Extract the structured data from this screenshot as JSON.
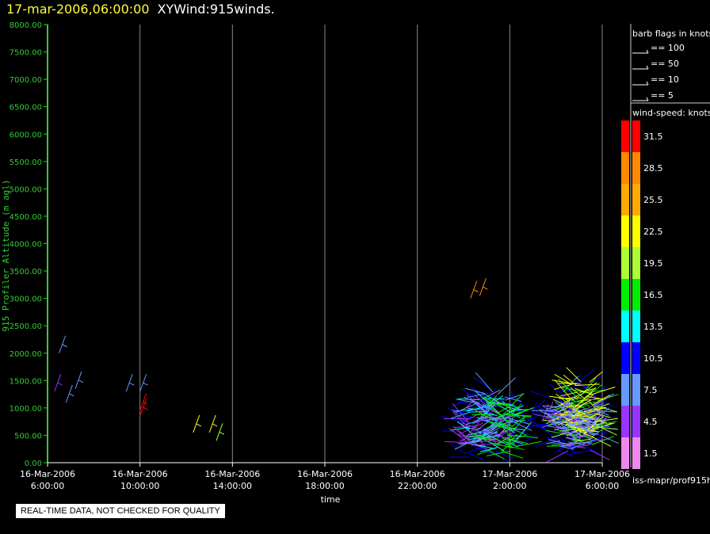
{
  "header": {
    "timestamp": "17-mar-2006,06:00:00",
    "name": "XYWind:915winds."
  },
  "colors": {
    "timestamp": "#ffff33",
    "axis": "#33cc33",
    "grid": "#888888"
  },
  "chart_data": {
    "type": "scatter",
    "ylabel": "915 Profiler Altitude (m agl)",
    "xlabel": "time",
    "ylim": [
      0,
      8000
    ],
    "yticks": [
      "0.00",
      "500.00",
      "1000.00",
      "1500.00",
      "2000.00",
      "2500.00",
      "3000.00",
      "3500.00",
      "4000.00",
      "4500.00",
      "5000.00",
      "5500.00",
      "6000.00",
      "6500.00",
      "7000.00",
      "7500.00",
      "8000.00"
    ],
    "xticks": [
      {
        "date": "16-Mar-2006",
        "time": "6:00:00"
      },
      {
        "date": "16-Mar-2006",
        "time": "10:00:00"
      },
      {
        "date": "16-Mar-2006",
        "time": "14:00:00"
      },
      {
        "date": "16-Mar-2006",
        "time": "18:00:00"
      },
      {
        "date": "16-Mar-2006",
        "time": "22:00:00"
      },
      {
        "date": "17-Mar-2006",
        "time": "2:00:00"
      },
      {
        "date": "17-Mar-2006",
        "time": "6:00:00"
      }
    ],
    "xlim_hours": [
      0,
      24
    ],
    "grid": true,
    "barb_legend": {
      "title": "barb flags in knots",
      "items": [
        "== 100",
        "== 50",
        "== 10",
        "== 5"
      ]
    },
    "color_legend": {
      "title": "wind-speed: knots",
      "levels": [
        {
          "label": "31.5",
          "color": "#ff0000"
        },
        {
          "label": "28.5",
          "color": "#ff8800"
        },
        {
          "label": "25.5",
          "color": "#ffaa00"
        },
        {
          "label": "22.5",
          "color": "#ffff00"
        },
        {
          "label": "19.5",
          "color": "#aaff33"
        },
        {
          "label": "16.5",
          "color": "#00ee00"
        },
        {
          "label": "13.5",
          "color": "#00ffff"
        },
        {
          "label": "10.5",
          "color": "#0000ff"
        },
        {
          "label": "7.5",
          "color": "#6699ff"
        },
        {
          "label": "4.5",
          "color": "#9933ff"
        },
        {
          "label": "1.5",
          "color": "#ee88ee"
        }
      ]
    },
    "wind_obs": [
      {
        "t": 0.5,
        "alt": 2000,
        "speed": 7.5
      },
      {
        "t": 0.3,
        "alt": 1300,
        "speed": 4.5
      },
      {
        "t": 0.8,
        "alt": 1100,
        "speed": 7.5
      },
      {
        "t": 1.2,
        "alt": 1350,
        "speed": 7.5
      },
      {
        "t": 4.0,
        "alt": 1300,
        "speed": 7.5
      },
      {
        "t": 3.4,
        "alt": 1300,
        "speed": 7.5
      },
      {
        "t": 4.0,
        "alt": 950,
        "speed": 31.5
      },
      {
        "t": 4.0,
        "alt": 850,
        "speed": 31.5
      },
      {
        "t": 7.0,
        "alt": 550,
        "speed": 22.5
      },
      {
        "t": 7.3,
        "alt": 400,
        "speed": 19.5
      },
      {
        "t": 18.3,
        "alt": 3000,
        "speed": 28.5
      },
      {
        "t": 18.7,
        "alt": 3050,
        "speed": 28.5
      },
      {
        "t": 6.3,
        "alt": 550,
        "speed": 22.5
      },
      {
        "t": 21.4,
        "alt": 750,
        "speed": 4.5
      },
      {
        "t": 21.6,
        "alt": 800,
        "speed": 4.5
      },
      {
        "t": 20.9,
        "alt": 800,
        "speed": 10.5
      }
    ],
    "wind_clusters": [
      {
        "t_start": 17.7,
        "t_end": 21.0,
        "alt_min": 100,
        "alt_max": 1400,
        "speed": 10.5
      },
      {
        "t_start": 18.0,
        "t_end": 20.5,
        "alt_min": 200,
        "alt_max": 1200,
        "speed": 13.5
      },
      {
        "t_start": 17.8,
        "t_end": 19.5,
        "alt_min": 300,
        "alt_max": 1000,
        "speed": 4.5
      },
      {
        "t_start": 18.5,
        "t_end": 20.0,
        "alt_min": 400,
        "alt_max": 1300,
        "speed": 7.5
      },
      {
        "t_start": 19.0,
        "t_end": 20.3,
        "alt_min": 200,
        "alt_max": 1100,
        "speed": 16.5
      },
      {
        "t_start": 21.9,
        "t_end": 24.0,
        "alt_min": 150,
        "alt_max": 1450,
        "speed": 10.5
      },
      {
        "t_start": 22.3,
        "t_end": 23.8,
        "alt_min": 300,
        "alt_max": 1300,
        "speed": 16.5
      },
      {
        "t_start": 22.5,
        "t_end": 24.0,
        "alt_min": 400,
        "alt_max": 1200,
        "speed": 19.5
      },
      {
        "t_start": 22.0,
        "t_end": 23.5,
        "alt_min": 200,
        "alt_max": 1000,
        "speed": 4.5
      },
      {
        "t_start": 22.5,
        "t_end": 23.6,
        "alt_min": 500,
        "alt_max": 1500,
        "speed": 22.5
      },
      {
        "t_start": 22.0,
        "t_end": 24.0,
        "alt_min": 300,
        "alt_max": 1100,
        "speed": 7.5
      }
    ]
  },
  "notice": "REAL-TIME DATA, NOT CHECKED FOR QUALITY",
  "footer_label": "iss-mapr/prof915h"
}
